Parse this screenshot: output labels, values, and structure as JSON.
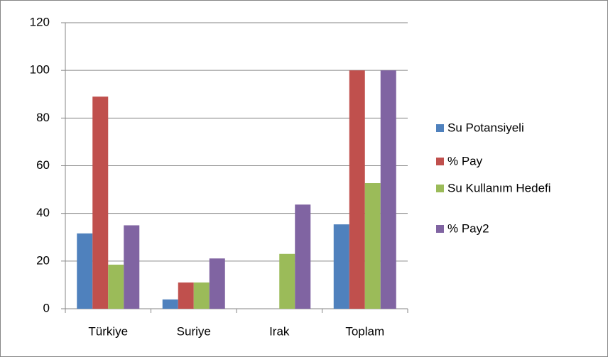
{
  "chart_data": {
    "type": "bar",
    "categories": [
      "Türkiye",
      "Suriye",
      "Irak",
      "Toplam"
    ],
    "series": [
      {
        "name": "Su Potansiyeli",
        "color": "#4f81bd",
        "values": [
          31.6,
          3.9,
          0,
          35.4
        ]
      },
      {
        "name": "% Pay",
        "color": "#c0504d",
        "values": [
          89,
          11,
          0,
          100
        ]
      },
      {
        "name": "Su Kullanım Hedefi",
        "color": "#9bbb59",
        "values": [
          18.5,
          11,
          23,
          52.7
        ]
      },
      {
        "name": "% Pay2",
        "color": "#8064a2",
        "values": [
          35,
          21.1,
          43.7,
          100
        ]
      }
    ],
    "ylim": [
      0,
      120
    ],
    "yticks": [
      0,
      20,
      40,
      60,
      80,
      100,
      120
    ],
    "grid": true,
    "legend": "right"
  }
}
